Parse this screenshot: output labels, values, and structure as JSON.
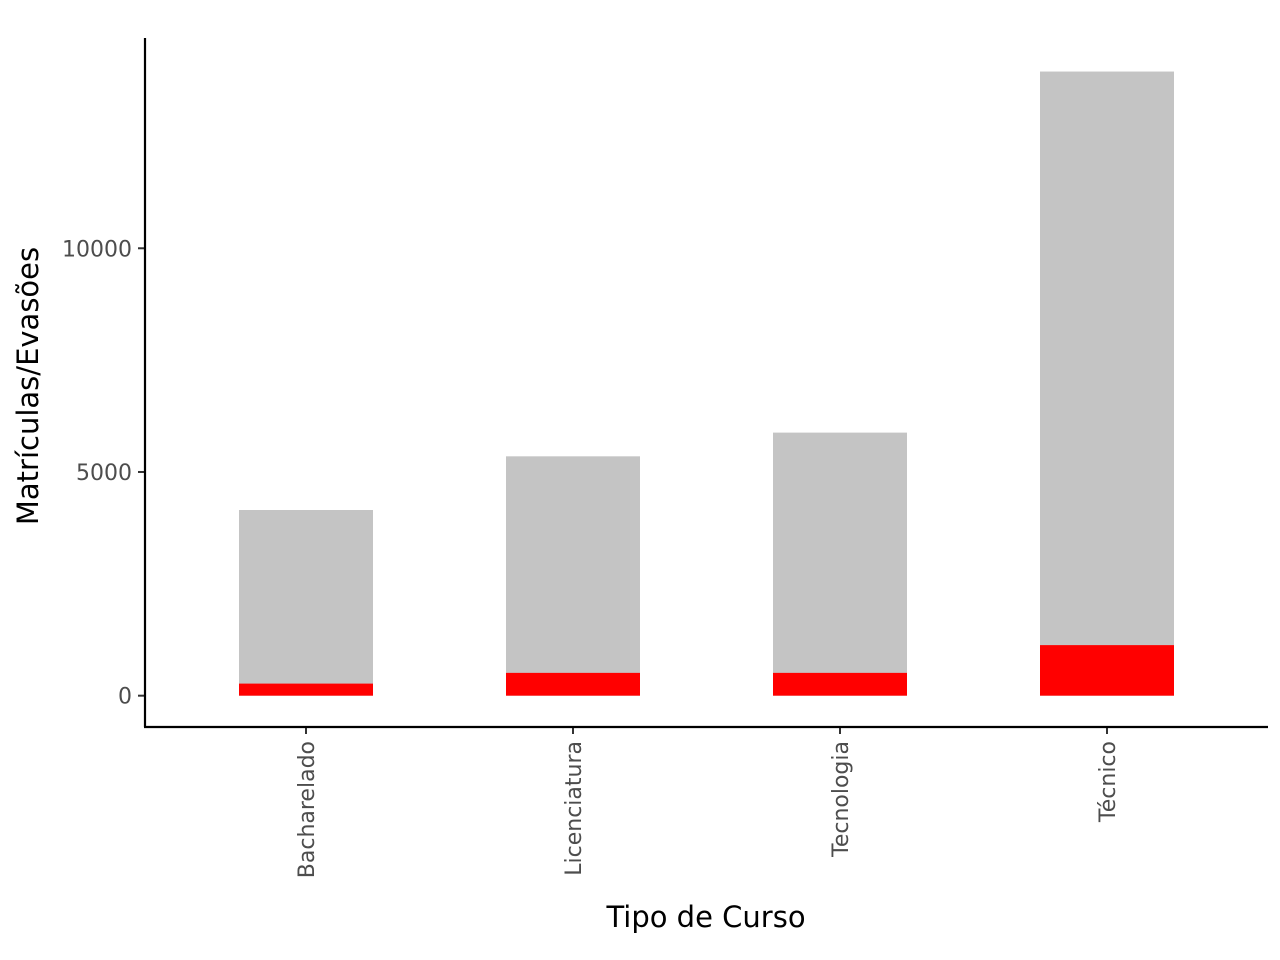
{
  "chart_data": {
    "type": "bar",
    "xlabel": "Tipo de Curso",
    "ylabel": "Matrículas/Evasões",
    "categories": [
      "Bacharelado",
      "Licenciatura",
      "Tecnologia",
      "Técnico"
    ],
    "series": [
      {
        "values": [
          4150,
          5350,
          5880,
          13950
        ],
        "color": "#c4c4c4"
      },
      {
        "values": [
          270,
          510,
          510,
          1130
        ],
        "color": "#ff0000"
      }
    ],
    "yticks": [
      0,
      5000,
      10000
    ],
    "ylim": [
      -700,
      14700
    ],
    "grid": false,
    "legend": "none"
  }
}
